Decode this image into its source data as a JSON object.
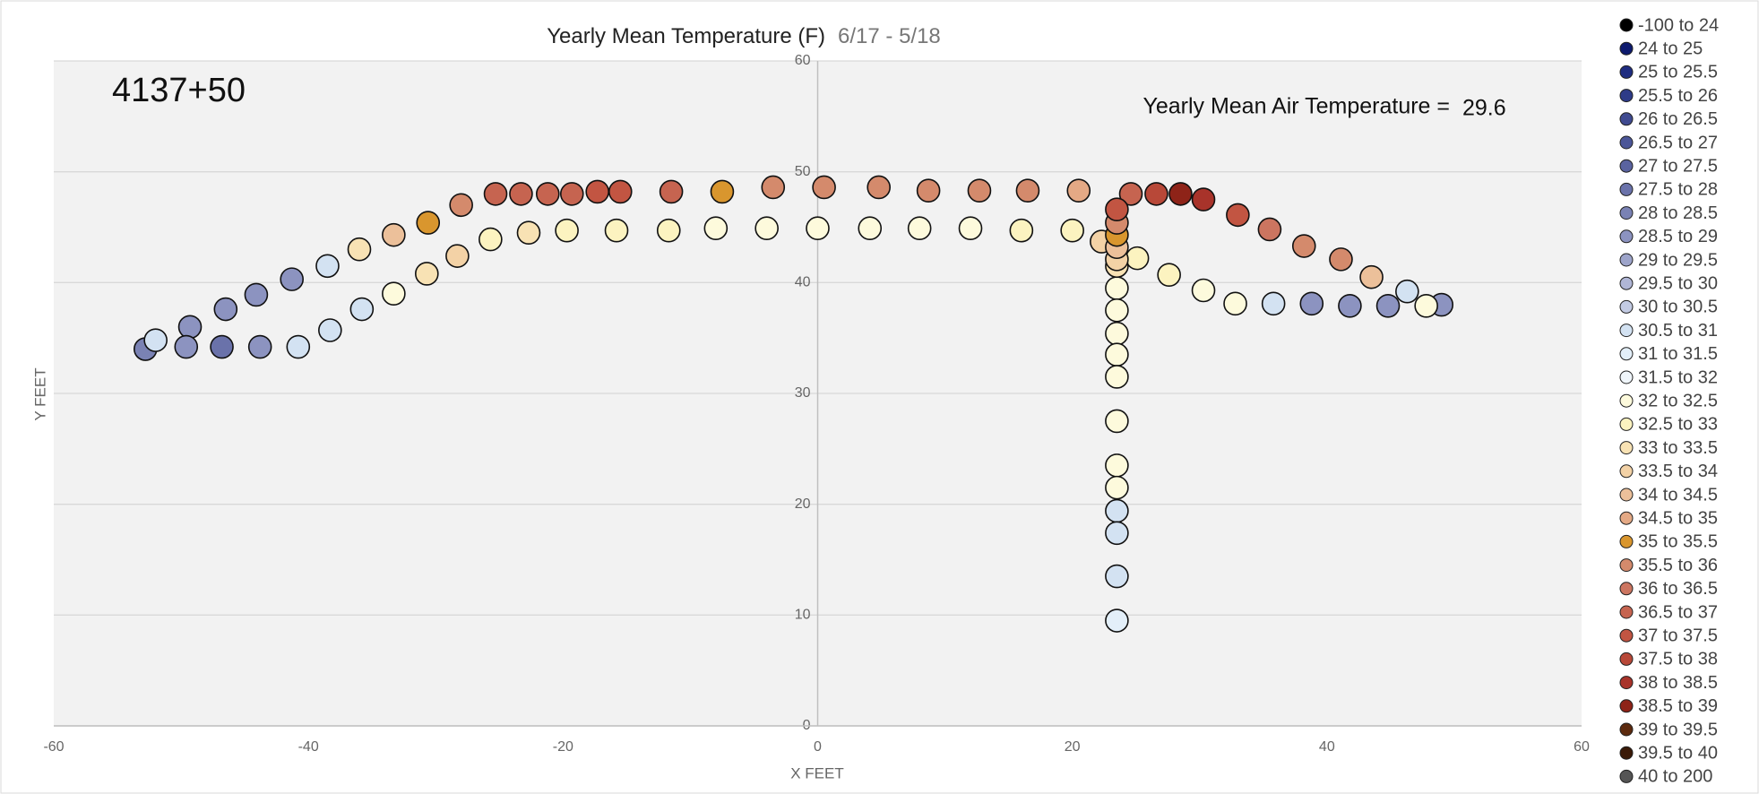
{
  "chart_data": {
    "type": "scatter",
    "title": "Yearly Mean Temperature (F)",
    "subtitle": "6/17 - 5/18",
    "xlabel": "X FEET",
    "ylabel": "Y FEET",
    "annotations": [
      "4137+50",
      "Yearly Mean Air Temperature =",
      "29.6"
    ],
    "xlim": [
      -60,
      60
    ],
    "xticks": [
      -60,
      -40,
      -20,
      0,
      20,
      40,
      60
    ],
    "ylim": [
      0,
      60
    ],
    "yticks": [
      0,
      10,
      20,
      30,
      40,
      50,
      60
    ],
    "grid": true,
    "legend": "right",
    "series": [
      {
        "name": "-100 to 24",
        "color": "#000000",
        "x": [],
        "y": []
      },
      {
        "name": "24 to 25",
        "color": "#0d1a6e",
        "x": [],
        "y": []
      },
      {
        "name": "25 to 25.5",
        "color": "#1f2d80",
        "x": [],
        "y": []
      },
      {
        "name": "25.5 to 26",
        "color": "#2e3b88",
        "x": [],
        "y": []
      },
      {
        "name": "26 to 26.5",
        "color": "#3f4a90",
        "x": [],
        "y": []
      },
      {
        "name": "26.5 to 27",
        "color": "#4c5698",
        "x": [],
        "y": []
      },
      {
        "name": "27 to 27.5",
        "color": "#5a63a0",
        "x": [],
        "y": []
      },
      {
        "name": "27.5 to 28",
        "color": "#6a72aa",
        "x": [
          -46.8
        ],
        "y": [
          34.2
        ]
      },
      {
        "name": "28 to 28.5",
        "color": "#7a82b4",
        "x": [
          -52.8
        ],
        "y": [
          34.0
        ]
      },
      {
        "name": "28.5 to 29",
        "color": "#8c93c0",
        "x": [
          -49.3,
          -46.5,
          -44.1,
          -41.3,
          -49.6,
          -43.8,
          49.0,
          38.8,
          41.8,
          44.8
        ],
        "y": [
          36.0,
          37.6,
          38.9,
          40.3,
          34.2,
          34.2,
          38.0,
          38.1,
          37.9,
          37.9
        ]
      },
      {
        "name": "29 to 29.5",
        "color": "#9da4ca",
        "x": [],
        "y": []
      },
      {
        "name": "29.5 to 30",
        "color": "#b0b6d6",
        "x": [],
        "y": []
      },
      {
        "name": "30 to 30.5",
        "color": "#c3cbe3",
        "x": [],
        "y": []
      },
      {
        "name": "30.5 to 31",
        "color": "#d3e2f2",
        "x": [
          -52.0,
          -40.8,
          -38.3,
          -35.8,
          -38.5,
          46.3,
          35.8,
          23.5,
          23.5,
          23.5
        ],
        "y": [
          34.8,
          34.2,
          35.7,
          37.6,
          41.5,
          39.2,
          38.1,
          19.4,
          17.4,
          13.5
        ]
      },
      {
        "name": "31 to 31.5",
        "color": "#e3eff9",
        "x": [
          23.5
        ],
        "y": [
          9.5
        ]
      },
      {
        "name": "31.5 to 32",
        "color": "#f0f6fb",
        "x": [],
        "y": []
      },
      {
        "name": "32 to 32.5",
        "color": "#fdfadc",
        "x": [
          -33.3,
          -8.0,
          -4.0,
          0,
          4.1,
          8.0,
          12.0,
          30.3,
          32.8,
          47.8,
          23.5,
          23.5,
          23.5,
          23.5,
          23.5,
          23.5,
          23.5,
          23.5
        ],
        "y": [
          39.0,
          44.9,
          44.9,
          44.9,
          44.9,
          44.9,
          44.9,
          39.3,
          38.1,
          37.9,
          39.5,
          37.5,
          35.4,
          33.5,
          31.5,
          27.5,
          23.5,
          21.5
        ]
      },
      {
        "name": "32.5 to 33",
        "color": "#fcf3c0",
        "x": [
          -25.7,
          -19.7,
          -15.8,
          -11.7,
          16.0,
          20.0,
          27.6,
          25.1
        ],
        "y": [
          43.9,
          44.7,
          44.7,
          44.7,
          44.7,
          44.7,
          40.7,
          42.2
        ]
      },
      {
        "name": "33 to 33.5",
        "color": "#f8e2b4",
        "x": [
          -36.0,
          -30.7,
          -22.7,
          23.5
        ],
        "y": [
          43.0,
          40.8,
          44.5,
          41.5
        ]
      },
      {
        "name": "33.5 to 34",
        "color": "#f3d2a6",
        "x": [
          -28.3,
          22.3,
          23.5
        ],
        "y": [
          42.4,
          43.7,
          42.1
        ]
      },
      {
        "name": "34 to 34.5",
        "color": "#ecc09a",
        "x": [
          -33.3,
          43.5,
          23.5
        ],
        "y": [
          44.3,
          40.5,
          43.2
        ]
      },
      {
        "name": "34.5 to 35",
        "color": "#e4a985",
        "x": [
          20.5
        ],
        "y": [
          48.3
        ]
      },
      {
        "name": "35 to 35.5",
        "color": "#d9962e",
        "x": [
          -30.6,
          -7.5,
          23.5
        ],
        "y": [
          45.4,
          48.2,
          44.3
        ]
      },
      {
        "name": "35.5 to 36",
        "color": "#d48a6c",
        "x": [
          -28.0,
          -3.5,
          0.5,
          4.8,
          8.7,
          12.7,
          16.5,
          38.2,
          41.1,
          23.5
        ],
        "y": [
          47.0,
          48.6,
          48.6,
          48.6,
          48.3,
          48.3,
          48.3,
          43.3,
          42.1,
          45.4
        ]
      },
      {
        "name": "36 to 36.5",
        "color": "#cc7560",
        "x": [
          35.5
        ],
        "y": [
          44.8
        ]
      },
      {
        "name": "36.5 to 37",
        "color": "#c66450",
        "x": [
          -25.3,
          -23.3,
          -21.2,
          -19.3,
          -11.5,
          24.6
        ],
        "y": [
          48.0,
          48.0,
          48.0,
          48.0,
          48.2,
          48.0
        ]
      },
      {
        "name": "37 to 37.5",
        "color": "#c25542",
        "x": [
          -17.3,
          -15.5,
          23.5,
          33.0
        ],
        "y": [
          48.2,
          48.2,
          46.6,
          46.1
        ]
      },
      {
        "name": "37.5 to 38",
        "color": "#b84838",
        "x": [
          26.6
        ],
        "y": [
          48.0
        ]
      },
      {
        "name": "38 to 38.5",
        "color": "#a8332a",
        "x": [
          30.3
        ],
        "y": [
          47.5
        ]
      },
      {
        "name": "38.5 to 39",
        "color": "#8e2318",
        "x": [
          28.5
        ],
        "y": [
          48.0
        ]
      },
      {
        "name": "39 to 39.5",
        "color": "#5c2a0e",
        "x": [],
        "y": []
      },
      {
        "name": "39.5 to 40",
        "color": "#3a1a08",
        "x": [],
        "y": []
      },
      {
        "name": "40 to 200",
        "color": "#555555",
        "x": [],
        "y": []
      }
    ]
  }
}
